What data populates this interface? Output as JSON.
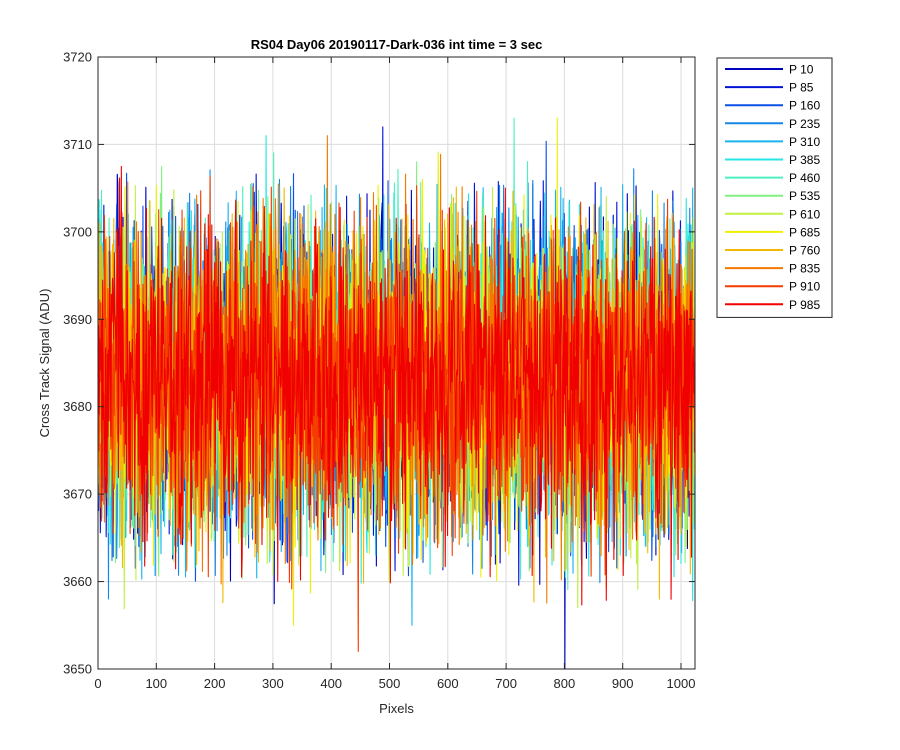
{
  "chart_data": {
    "type": "line",
    "title": "RS04 Day06 20190117-Dark-036 int time = 3 sec",
    "xlabel": "Pixels",
    "ylabel": "Cross Track Signal (ADU)",
    "xlim": [
      0,
      1024
    ],
    "ylim": [
      3650,
      3720
    ],
    "xticks": [
      0,
      100,
      200,
      300,
      400,
      500,
      600,
      700,
      800,
      900,
      1000
    ],
    "yticks": [
      3650,
      3660,
      3670,
      3680,
      3690,
      3700,
      3710,
      3720
    ],
    "grid": true,
    "legend_position": "outside-top-right",
    "n_points": 1024,
    "baseline_mean": 3683,
    "noise_amplitude": 9,
    "series": [
      {
        "name": "P 10",
        "color": "#0000bf"
      },
      {
        "name": "P 85",
        "color": "#0014d6"
      },
      {
        "name": "P 160",
        "color": "#0a50e6"
      },
      {
        "name": "P 235",
        "color": "#1487e6"
      },
      {
        "name": "P 310",
        "color": "#18b4f0"
      },
      {
        "name": "P 385",
        "color": "#26e6e6"
      },
      {
        "name": "P 460",
        "color": "#4df0c0"
      },
      {
        "name": "P 535",
        "color": "#80f080"
      },
      {
        "name": "P 610",
        "color": "#c0f040"
      },
      {
        "name": "P 685",
        "color": "#f0f000"
      },
      {
        "name": "P 760",
        "color": "#f5b800"
      },
      {
        "name": "P 835",
        "color": "#f57800"
      },
      {
        "name": "P 910",
        "color": "#f53c00"
      },
      {
        "name": "P 985",
        "color": "#f00000"
      }
    ],
    "spikes": [
      {
        "series": 0,
        "x": 800,
        "y": 3650
      },
      {
        "series": 1,
        "x": 488,
        "y": 3712
      },
      {
        "series": 4,
        "x": 538,
        "y": 3655
      },
      {
        "series": 5,
        "x": 288,
        "y": 3711
      },
      {
        "series": 6,
        "x": 713,
        "y": 3713
      },
      {
        "series": 9,
        "x": 787,
        "y": 3713
      },
      {
        "series": 9,
        "x": 335,
        "y": 3655
      },
      {
        "series": 11,
        "x": 393,
        "y": 3711
      },
      {
        "series": 12,
        "x": 446,
        "y": 3652
      },
      {
        "series": 3,
        "x": 18,
        "y": 3658
      },
      {
        "series": 8,
        "x": 822,
        "y": 3657
      },
      {
        "series": 10,
        "x": 962,
        "y": 3658
      }
    ]
  }
}
